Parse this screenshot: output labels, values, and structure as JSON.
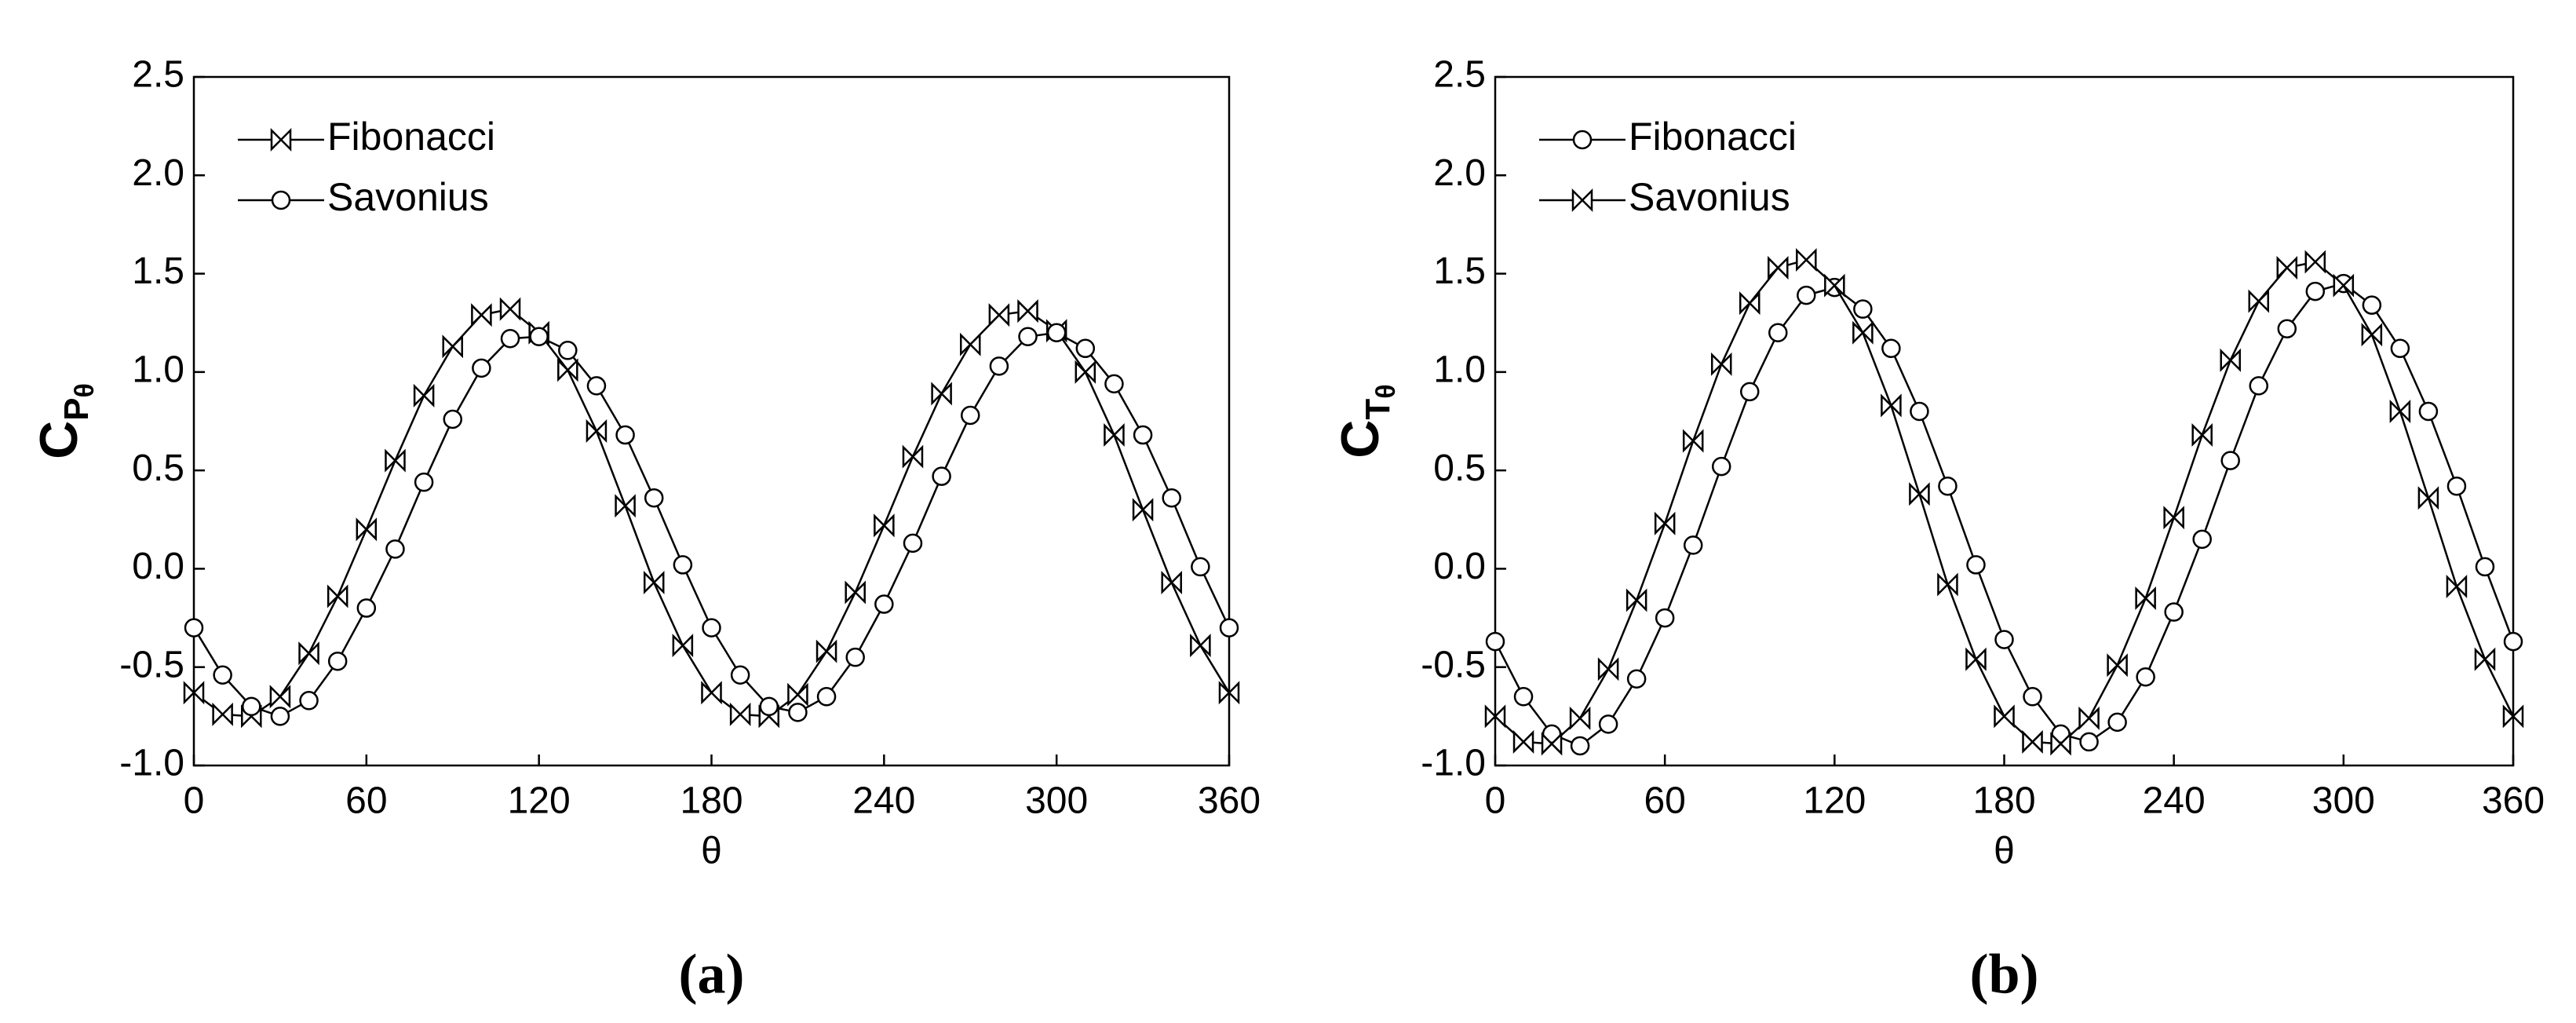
{
  "chart_data": [
    {
      "type": "line",
      "caption": "(a)",
      "xlabel": "θ",
      "ylabel": {
        "base": "C",
        "sub": "P",
        "subsub": "θ"
      },
      "x": [
        0,
        10,
        20,
        30,
        40,
        50,
        60,
        70,
        80,
        90,
        100,
        110,
        120,
        130,
        140,
        150,
        160,
        170,
        180,
        190,
        200,
        210,
        220,
        230,
        240,
        250,
        260,
        270,
        280,
        290,
        300,
        310,
        320,
        330,
        340,
        350,
        360
      ],
      "xlim": [
        0,
        360
      ],
      "xticks": [
        0,
        60,
        120,
        180,
        240,
        300,
        360
      ],
      "ylim": [
        -1,
        2.5
      ],
      "yticks": [
        {
          "value": -1,
          "label": "-1.0"
        },
        {
          "value": -0.5,
          "label": "-0.5"
        },
        {
          "value": 0,
          "label": "0.0"
        },
        {
          "value": 0.5,
          "label": "0.5"
        },
        {
          "value": 1,
          "label": "1.0"
        },
        {
          "value": 1.5,
          "label": "1.5"
        },
        {
          "value": 2,
          "label": "2.0"
        },
        {
          "value": 2.5,
          "label": "2.5"
        }
      ],
      "legend": "upper left",
      "series": [
        {
          "name": "Fibonacci",
          "color": "#000000",
          "marker": "bowtie",
          "values": [
            -0.63,
            -0.74,
            -0.75,
            -0.65,
            -0.43,
            -0.14,
            0.2,
            0.55,
            0.88,
            1.13,
            1.29,
            1.32,
            1.2,
            1.01,
            0.7,
            0.32,
            -0.07,
            -0.39,
            -0.63,
            -0.74,
            -0.75,
            -0.64,
            -0.42,
            -0.12,
            0.22,
            0.57,
            0.89,
            1.14,
            1.29,
            1.31,
            1.21,
            1.0,
            0.68,
            0.3,
            -0.07,
            -0.39,
            -0.63
          ]
        },
        {
          "name": "Savonius",
          "color": "#000000",
          "marker": "circle",
          "values": [
            -0.3,
            -0.54,
            -0.7,
            -0.75,
            -0.67,
            -0.47,
            -0.2,
            0.1,
            0.44,
            0.76,
            1.02,
            1.17,
            1.18,
            1.11,
            0.93,
            0.68,
            0.36,
            0.02,
            -0.3,
            -0.54,
            -0.7,
            -0.73,
            -0.65,
            -0.45,
            -0.18,
            0.13,
            0.47,
            0.78,
            1.03,
            1.18,
            1.2,
            1.12,
            0.94,
            0.68,
            0.36,
            0.01,
            -0.3
          ]
        }
      ]
    },
    {
      "type": "line",
      "caption": "(b)",
      "xlabel": "θ",
      "ylabel": {
        "base": "C",
        "sub": "T",
        "subsub": "θ"
      },
      "x": [
        0,
        10,
        20,
        30,
        40,
        50,
        60,
        70,
        80,
        90,
        100,
        110,
        120,
        130,
        140,
        150,
        160,
        170,
        180,
        190,
        200,
        210,
        220,
        230,
        240,
        250,
        260,
        270,
        280,
        290,
        300,
        310,
        320,
        330,
        340,
        350,
        360
      ],
      "xlim": [
        0,
        360
      ],
      "xticks": [
        0,
        60,
        120,
        180,
        240,
        300,
        360
      ],
      "ylim": [
        -1,
        2.5
      ],
      "yticks": [
        {
          "value": -1,
          "label": "-1.0"
        },
        {
          "value": -0.5,
          "label": "-0.5"
        },
        {
          "value": 0,
          "label": "0.0"
        },
        {
          "value": 0.5,
          "label": "0.5"
        },
        {
          "value": 1,
          "label": "1.0"
        },
        {
          "value": 1.5,
          "label": "1.5"
        },
        {
          "value": 2,
          "label": "2.0"
        },
        {
          "value": 2.5,
          "label": "2.5"
        }
      ],
      "legend": "upper left",
      "series": [
        {
          "name": "Fibonacci",
          "color": "#000000",
          "marker": "circle",
          "values": [
            -0.37,
            -0.65,
            -0.84,
            -0.9,
            -0.79,
            -0.56,
            -0.25,
            0.12,
            0.52,
            0.9,
            1.2,
            1.39,
            1.43,
            1.32,
            1.12,
            0.8,
            0.42,
            0.02,
            -0.36,
            -0.65,
            -0.84,
            -0.88,
            -0.78,
            -0.55,
            -0.22,
            0.15,
            0.55,
            0.93,
            1.22,
            1.41,
            1.45,
            1.34,
            1.12,
            0.8,
            0.42,
            0.01,
            -0.37
          ]
        },
        {
          "name": "Savonius",
          "color": "#000000",
          "marker": "bowtie",
          "values": [
            -0.75,
            -0.88,
            -0.89,
            -0.76,
            -0.51,
            -0.16,
            0.23,
            0.65,
            1.04,
            1.35,
            1.53,
            1.57,
            1.44,
            1.2,
            0.83,
            0.38,
            -0.08,
            -0.46,
            -0.75,
            -0.88,
            -0.89,
            -0.76,
            -0.49,
            -0.15,
            0.26,
            0.68,
            1.06,
            1.36,
            1.53,
            1.56,
            1.44,
            1.19,
            0.8,
            0.36,
            -0.09,
            -0.46,
            -0.75
          ]
        }
      ]
    }
  ]
}
